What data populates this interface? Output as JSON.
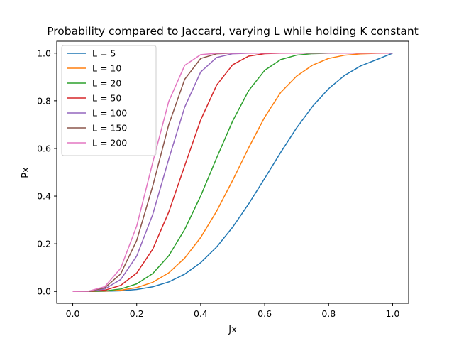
{
  "chart_data": {
    "type": "line",
    "title": "Probability compared to Jaccard, varying L while holding K constant",
    "xlabel": "Jx",
    "ylabel": "Px",
    "xlim": [
      -0.05,
      1.05
    ],
    "ylim": [
      -0.05,
      1.05
    ],
    "x_ticks": [
      0.0,
      0.2,
      0.4,
      0.6,
      0.8,
      1.0
    ],
    "y_ticks": [
      0.0,
      0.2,
      0.4,
      0.6,
      0.8,
      1.0
    ],
    "x_tick_labels": [
      "0.0",
      "0.2",
      "0.4",
      "0.6",
      "0.8",
      "1.0"
    ],
    "y_tick_labels": [
      "0.0",
      "0.2",
      "0.4",
      "0.6",
      "0.8",
      "1.0"
    ],
    "grid": false,
    "legend_position": "upper-left",
    "x": [
      0,
      0.05,
      0.1,
      0.15,
      0.2,
      0.25,
      0.3,
      0.35,
      0.4,
      0.45,
      0.5,
      0.55,
      0.6,
      0.65,
      0.7,
      0.75,
      0.8,
      0.85,
      0.9,
      0.95,
      1.0
    ],
    "series": [
      {
        "name": "L = 5",
        "color": "#1f77b4",
        "values": [
          0,
          0.0,
          0.0005,
          0.0025,
          0.008,
          0.0193,
          0.0397,
          0.0725,
          0.1208,
          0.1866,
          0.2697,
          0.3674,
          0.4744,
          0.5833,
          0.6864,
          0.7771,
          0.8509,
          0.9066,
          0.9462,
          0.9727,
          1.0
        ]
      },
      {
        "name": "L = 10",
        "color": "#ff7f0e",
        "values": [
          0,
          0.0001,
          0.001,
          0.0051,
          0.0159,
          0.0382,
          0.0778,
          0.1398,
          0.2265,
          0.3371,
          0.4664,
          0.6031,
          0.731,
          0.8347,
          0.9035,
          0.9497,
          0.9778,
          0.9913,
          0.9971,
          0.9993,
          1.0
        ]
      },
      {
        "name": "L = 20",
        "color": "#2ca02c",
        "values": [
          0,
          0.0001,
          0.002,
          0.0102,
          0.0316,
          0.0749,
          0.1495,
          0.26,
          0.4007,
          0.5607,
          0.7153,
          0.8426,
          0.9277,
          0.9728,
          0.9917,
          0.998,
          0.9996,
          0.9999,
          1.0,
          1.0,
          1.0
        ]
      },
      {
        "name": "L = 50",
        "color": "#d62728",
        "values": [
          0,
          0.0003,
          0.005,
          0.0253,
          0.0771,
          0.1772,
          0.3325,
          0.5274,
          0.7195,
          0.8662,
          0.9511,
          0.9875,
          0.9979,
          0.9998,
          1.0,
          1.0,
          1.0,
          1.0,
          1.0,
          1.0,
          1.0
        ]
      },
      {
        "name": "L = 100",
        "color": "#9467bd",
        "values": [
          0,
          0.0006,
          0.01,
          0.05,
          0.1484,
          0.3227,
          0.5545,
          0.7733,
          0.9208,
          0.9818,
          0.9976,
          0.9998,
          1.0,
          1.0,
          1.0,
          1.0,
          1.0,
          1.0,
          1.0,
          1.0,
          1.0
        ]
      },
      {
        "name": "L = 150",
        "color": "#8c564b",
        "values": [
          0,
          0.0009,
          0.0149,
          0.074,
          0.2142,
          0.4415,
          0.699,
          0.8901,
          0.9775,
          0.9975,
          0.9999,
          1.0,
          1.0,
          1.0,
          1.0,
          1.0,
          1.0,
          1.0,
          1.0,
          1.0,
          1.0
        ]
      },
      {
        "name": "L = 200",
        "color": "#e377c2",
        "values": [
          0,
          0.0012,
          0.0198,
          0.0975,
          0.2745,
          0.5407,
          0.7968,
          0.9486,
          0.9937,
          0.9997,
          1.0,
          1.0,
          1.0,
          1.0,
          1.0,
          1.0,
          1.0,
          1.0,
          1.0,
          1.0,
          1.0
        ]
      }
    ]
  }
}
